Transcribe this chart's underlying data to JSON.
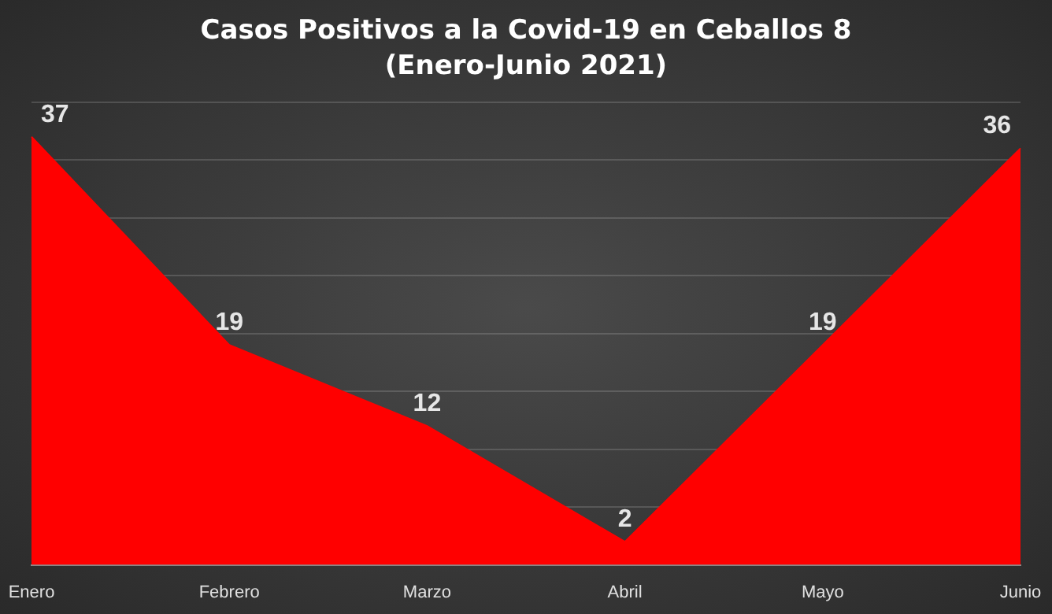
{
  "chart_data": {
    "type": "area",
    "title": "Casos Positivos a la Covid-19 en Ceballos 8",
    "subtitle": "(Enero-Junio 2021)",
    "categories": [
      "Enero",
      "Febrero",
      "Marzo",
      "Abril",
      "Mayo",
      "Junio"
    ],
    "series": [
      {
        "color": "#ff0000",
        "values": [
          37,
          19,
          12,
          2,
          19,
          36
        ]
      }
    ],
    "ylim": [
      0,
      40
    ],
    "yticks": [
      {
        "value": 0,
        "label": null
      },
      {
        "value": 5,
        "label": null
      },
      {
        "value": 10,
        "label": null
      },
      {
        "value": 15,
        "label": null
      },
      {
        "value": 20,
        "label": null
      },
      {
        "value": 25,
        "label": null
      },
      {
        "value": 30,
        "label": null
      },
      {
        "value": 35,
        "label": null
      },
      {
        "value": 40,
        "label": null
      }
    ],
    "grid": "y",
    "tick_labels": "x",
    "legend": false,
    "data_labels": true
  }
}
